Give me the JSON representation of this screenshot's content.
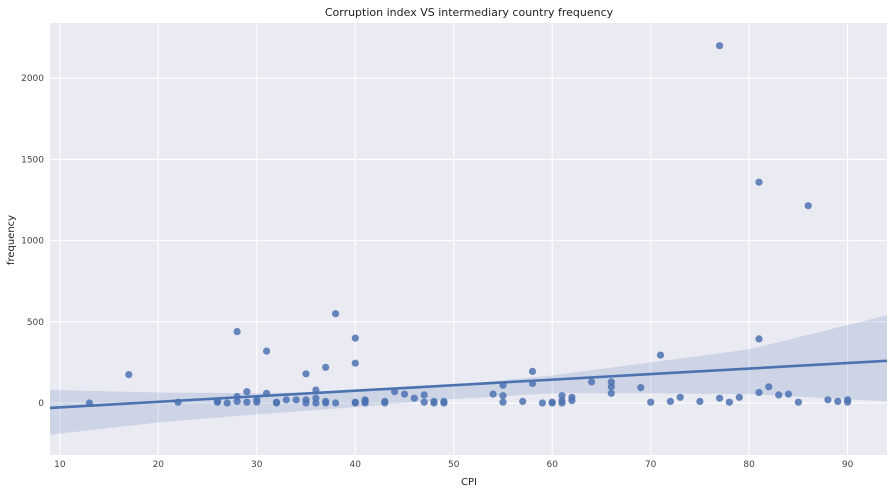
{
  "chart_data": {
    "type": "scatter",
    "title": "Corruption index VS intermediary country frequency",
    "xlabel": "CPI",
    "ylabel": "frequency",
    "xlim": [
      9,
      94
    ],
    "ylim": [
      -320,
      2340
    ],
    "xticks": [
      10,
      20,
      30,
      40,
      50,
      60,
      70,
      80,
      90
    ],
    "yticks": [
      0,
      500,
      1000,
      1500,
      2000
    ],
    "grid": true,
    "colors": {
      "background": "#eaeaf2",
      "grid": "#ffffff",
      "points": "#4c72b0",
      "band": "#4c72b0"
    },
    "regression": {
      "x": [
        9,
        94
      ],
      "y": [
        -30,
        260
      ]
    },
    "confidence_band": {
      "x": [
        9,
        20,
        30,
        40,
        50,
        60,
        70,
        80,
        94
      ],
      "upper": [
        80,
        65,
        60,
        70,
        110,
        170,
        250,
        330,
        540
      ],
      "lower": [
        -195,
        -120,
        -70,
        -25,
        25,
        60,
        60,
        55,
        10
      ]
    },
    "series": [
      {
        "points": [
          [
            13,
            0
          ],
          [
            17,
            175
          ],
          [
            22,
            5
          ],
          [
            26,
            10
          ],
          [
            26,
            5
          ],
          [
            27,
            0
          ],
          [
            28,
            440
          ],
          [
            28,
            40
          ],
          [
            28,
            10
          ],
          [
            29,
            70
          ],
          [
            29,
            5
          ],
          [
            30,
            20
          ],
          [
            30,
            5
          ],
          [
            31,
            320
          ],
          [
            31,
            60
          ],
          [
            32,
            5
          ],
          [
            32,
            0
          ],
          [
            33,
            20
          ],
          [
            34,
            20
          ],
          [
            35,
            180
          ],
          [
            35,
            20
          ],
          [
            35,
            0
          ],
          [
            36,
            80
          ],
          [
            36,
            30
          ],
          [
            36,
            0
          ],
          [
            37,
            220
          ],
          [
            37,
            10
          ],
          [
            37,
            0
          ],
          [
            38,
            550
          ],
          [
            38,
            0
          ],
          [
            40,
            400
          ],
          [
            40,
            245
          ],
          [
            40,
            5
          ],
          [
            40,
            0
          ],
          [
            41,
            20
          ],
          [
            41,
            10
          ],
          [
            41,
            0
          ],
          [
            43,
            10
          ],
          [
            43,
            0
          ],
          [
            44,
            70
          ],
          [
            45,
            55
          ],
          [
            46,
            30
          ],
          [
            47,
            50
          ],
          [
            47,
            5
          ],
          [
            48,
            10
          ],
          [
            48,
            0
          ],
          [
            49,
            10
          ],
          [
            49,
            0
          ],
          [
            54,
            55
          ],
          [
            55,
            110
          ],
          [
            55,
            45
          ],
          [
            55,
            5
          ],
          [
            57,
            10
          ],
          [
            58,
            195
          ],
          [
            58,
            120
          ],
          [
            59,
            0
          ],
          [
            60,
            5
          ],
          [
            60,
            0
          ],
          [
            61,
            45
          ],
          [
            61,
            15
          ],
          [
            61,
            0
          ],
          [
            62,
            35
          ],
          [
            62,
            15
          ],
          [
            64,
            130
          ],
          [
            66,
            130
          ],
          [
            66,
            100
          ],
          [
            66,
            60
          ],
          [
            69,
            95
          ],
          [
            70,
            5
          ],
          [
            71,
            295
          ],
          [
            72,
            10
          ],
          [
            73,
            35
          ],
          [
            75,
            10
          ],
          [
            77,
            2200
          ],
          [
            77,
            30
          ],
          [
            78,
            5
          ],
          [
            79,
            35
          ],
          [
            81,
            1360
          ],
          [
            81,
            395
          ],
          [
            81,
            65
          ],
          [
            82,
            100
          ],
          [
            83,
            50
          ],
          [
            84,
            55
          ],
          [
            85,
            5
          ],
          [
            86,
            1215
          ],
          [
            88,
            20
          ],
          [
            89,
            10
          ],
          [
            90,
            20
          ],
          [
            90,
            5
          ]
        ]
      }
    ]
  }
}
